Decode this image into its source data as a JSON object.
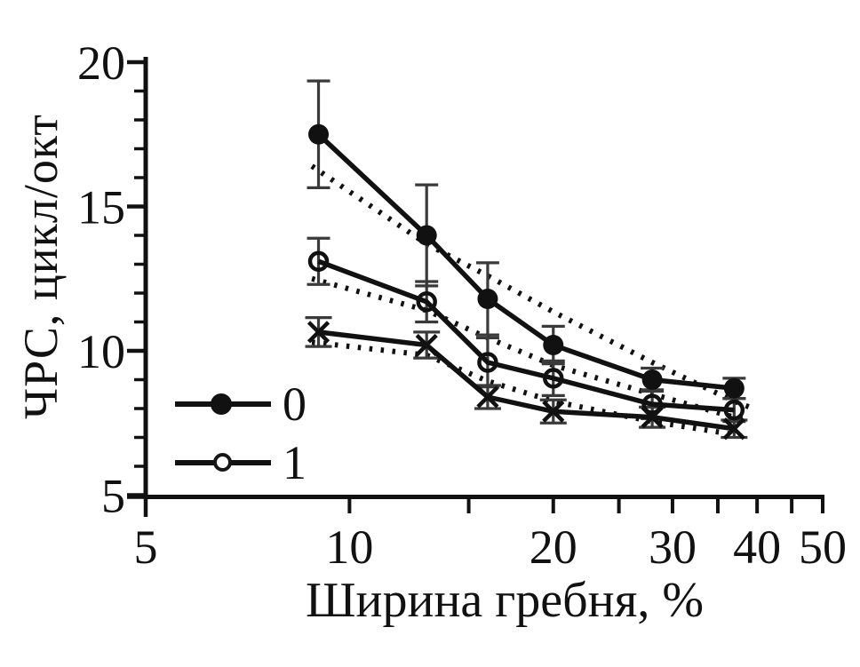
{
  "figure": {
    "background": "#ffffff",
    "ink_color": "#111111",
    "error_bar_color": "#3a3a3a"
  },
  "chart_data": {
    "type": "line",
    "title": "",
    "xlabel": "Ширина гребня, %",
    "ylabel": "ЧРС, цикл/окт",
    "x_axis": {
      "scale": "log",
      "min": 5,
      "max": 50,
      "labeled_ticks": [
        5,
        10,
        20,
        30,
        40,
        50
      ],
      "minor_ticks": [
        15,
        25,
        35,
        45
      ]
    },
    "y_axis": {
      "scale": "linear",
      "min": 5,
      "max": 20,
      "labeled_ticks": [
        5,
        10,
        15,
        20
      ],
      "minor_step": 1
    },
    "x": [
      9,
      13,
      16,
      20,
      28,
      37
    ],
    "series": [
      {
        "name": "0",
        "marker": "filled-circle",
        "line": "solid",
        "values": [
          17.5,
          14.0,
          11.8,
          10.2,
          9.0,
          8.7
        ],
        "errors": [
          1.85,
          1.75,
          1.25,
          0.65,
          0.4,
          0.35
        ]
      },
      {
        "name": "1",
        "marker": "open-circle",
        "line": "solid",
        "values": [
          13.1,
          11.7,
          9.6,
          9.05,
          8.15,
          7.95
        ],
        "errors": [
          0.8,
          0.7,
          0.85,
          0.6,
          0.5,
          0.4
        ]
      },
      {
        "name": "x",
        "marker": "x-cross",
        "line": "solid",
        "values": [
          10.65,
          10.2,
          8.4,
          7.9,
          7.7,
          7.3
        ],
        "errors": [
          0.5,
          0.45,
          0.4,
          0.4,
          0.35,
          0.3
        ]
      }
    ],
    "trend_lines": [
      {
        "for_series": "0",
        "line": "dotted",
        "x": [
          8.8,
          13,
          16,
          20,
          28,
          37,
          39
        ],
        "values": [
          16.4,
          13.7,
          12.6,
          11.35,
          9.6,
          8.25,
          8.05
        ]
      },
      {
        "for_series": "1",
        "line": "dotted",
        "x": [
          8.8,
          13,
          16,
          20,
          28,
          37,
          39
        ],
        "values": [
          12.5,
          11.4,
          10.45,
          9.5,
          8.5,
          7.7,
          7.6
        ]
      },
      {
        "for_series": "x",
        "line": "dotted",
        "x": [
          8.8,
          13,
          16,
          20,
          28,
          37,
          38.7
        ],
        "values": [
          10.3,
          9.85,
          8.95,
          8.25,
          7.55,
          7.1,
          7.0
        ]
      }
    ],
    "legend": [
      {
        "label": "0",
        "marker": "filled-circle"
      },
      {
        "label": "1",
        "marker": "open-circle"
      }
    ]
  }
}
